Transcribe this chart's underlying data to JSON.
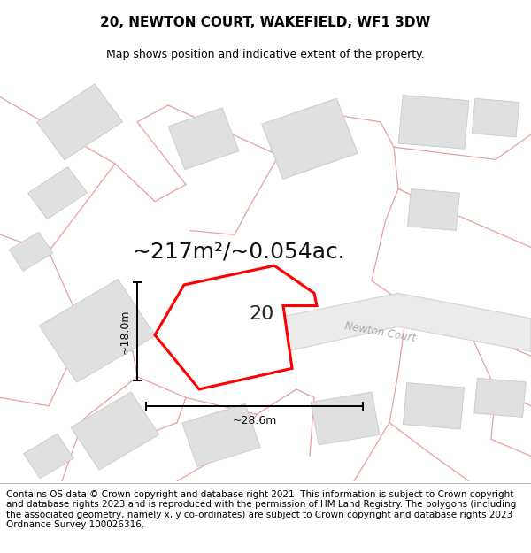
{
  "title": "20, NEWTON COURT, WAKEFIELD, WF1 3DW",
  "subtitle": "Map shows position and indicative extent of the property.",
  "footer": "Contains OS data © Crown copyright and database right 2021. This information is subject to Crown copyright and database rights 2023 and is reproduced with the permission of HM Land Registry. The polygons (including the associated geometry, namely x, y co-ordinates) are subject to Crown copyright and database rights 2023 Ordnance Survey 100026316.",
  "area_label": "~217m²/~0.054ac.",
  "number_label": "20",
  "width_label": "~28.6m",
  "height_label": "~18.0m",
  "street_label": "Newton Court",
  "bg_color": "#ffffff",
  "map_bg": "#ffffff",
  "building_fill": "#e0e0e0",
  "building_edge": "#c8c8c8",
  "pink_line": "#e8a0a0",
  "highlight_color": "#ff0000",
  "road_fill": "#eeeeee",
  "road_edge": "#cccccc",
  "road_label_color": "#aaaaaa",
  "title_fontsize": 11,
  "subtitle_fontsize": 9,
  "footer_fontsize": 7.5,
  "area_fontsize": 18,
  "number_fontsize": 16,
  "dim_fontsize": 9
}
